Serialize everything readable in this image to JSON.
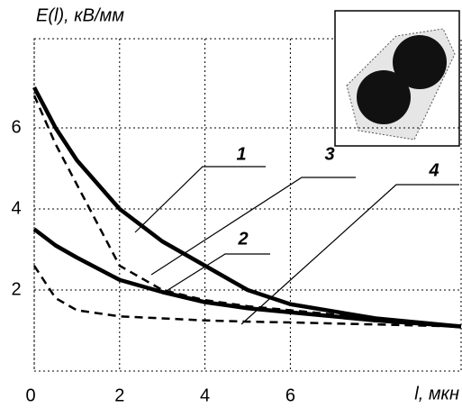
{
  "chart_data": {
    "type": "line",
    "title": "E(l), кВ/мм",
    "x_label": "l, мкн",
    "x": [
      0,
      0.5,
      1,
      2,
      3,
      4,
      5,
      6,
      8,
      10
    ],
    "series": [
      {
        "name": "1",
        "color": "#000000",
        "style": "solid",
        "values": [
          7.0,
          6.0,
          5.2,
          4.0,
          3.2,
          2.6,
          2.0,
          1.65,
          1.3,
          1.1
        ]
      },
      {
        "name": "2",
        "color": "#000000",
        "style": "solid",
        "values": [
          3.5,
          3.1,
          2.8,
          2.25,
          1.95,
          1.7,
          1.55,
          1.45,
          1.25,
          1.1
        ]
      },
      {
        "name": "3",
        "color": "#000000",
        "style": "dashed",
        "values": [
          6.8,
          5.6,
          4.6,
          2.6,
          2.0,
          1.75,
          1.6,
          1.5,
          1.3,
          1.1
        ]
      },
      {
        "name": "4",
        "color": "#000000",
        "style": "dashed",
        "values": [
          2.6,
          1.8,
          1.5,
          1.35,
          1.3,
          1.25,
          1.22,
          1.2,
          1.15,
          1.1
        ]
      }
    ],
    "xlim": [
      0,
      10
    ],
    "ylim": [
      0,
      8.2
    ],
    "xticks": [
      0,
      2,
      4,
      6
    ],
    "yticks": [
      2,
      4,
      6
    ],
    "grid": true
  }
}
